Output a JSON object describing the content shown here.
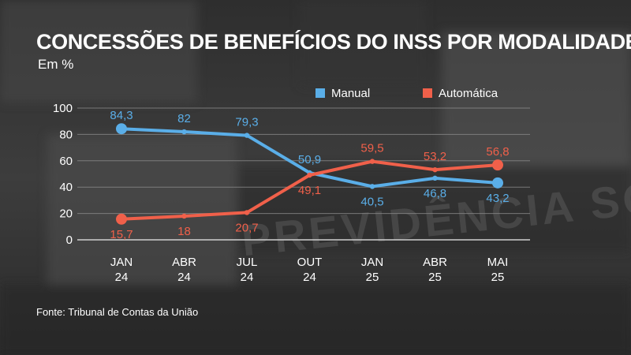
{
  "header": {
    "title": "CONCESSÕES DE BENEFÍCIOS DO INSS POR MODALIDADE",
    "subtitle": "Em %"
  },
  "footer": {
    "source": "Fonte: Tribunal de Contas da União"
  },
  "background": {
    "watermark_text": "PREVIDÊNCIA SOCIAL"
  },
  "colors": {
    "manual": "#5aaee8",
    "automatica": "#f0604a",
    "text": "#ffffff",
    "grid": "#8a8a8a"
  },
  "chart_data": {
    "type": "line",
    "title": "CONCESSÕES DE BENEFÍCIOS DO INSS POR MODALIDADE",
    "ylabel": "Em %",
    "categories": [
      [
        "JAN",
        "24"
      ],
      [
        "ABR",
        "24"
      ],
      [
        "JUL",
        "24"
      ],
      [
        "OUT",
        "24"
      ],
      [
        "JAN",
        "25"
      ],
      [
        "ABR",
        "25"
      ],
      [
        "MAI",
        "25"
      ]
    ],
    "ylim": [
      0,
      100
    ],
    "yticks": [
      0,
      20,
      40,
      60,
      80,
      100
    ],
    "grid": true,
    "legend_position": "top-right",
    "series": [
      {
        "name": "Manual",
        "color": "#5aaee8",
        "values": [
          84.3,
          82,
          79.3,
          50.9,
          40.5,
          46.8,
          43.2
        ],
        "labels": [
          "84,3",
          "82",
          "79,3",
          "50,9",
          "40,5",
          "46,8",
          "43,2"
        ]
      },
      {
        "name": "Automática",
        "color": "#f0604a",
        "values": [
          15.7,
          18,
          20.7,
          49.1,
          59.5,
          53.2,
          56.8
        ],
        "labels": [
          "15,7",
          "18",
          "20,7",
          "49,1",
          "59,5",
          "53,2",
          "56,8"
        ]
      }
    ]
  }
}
